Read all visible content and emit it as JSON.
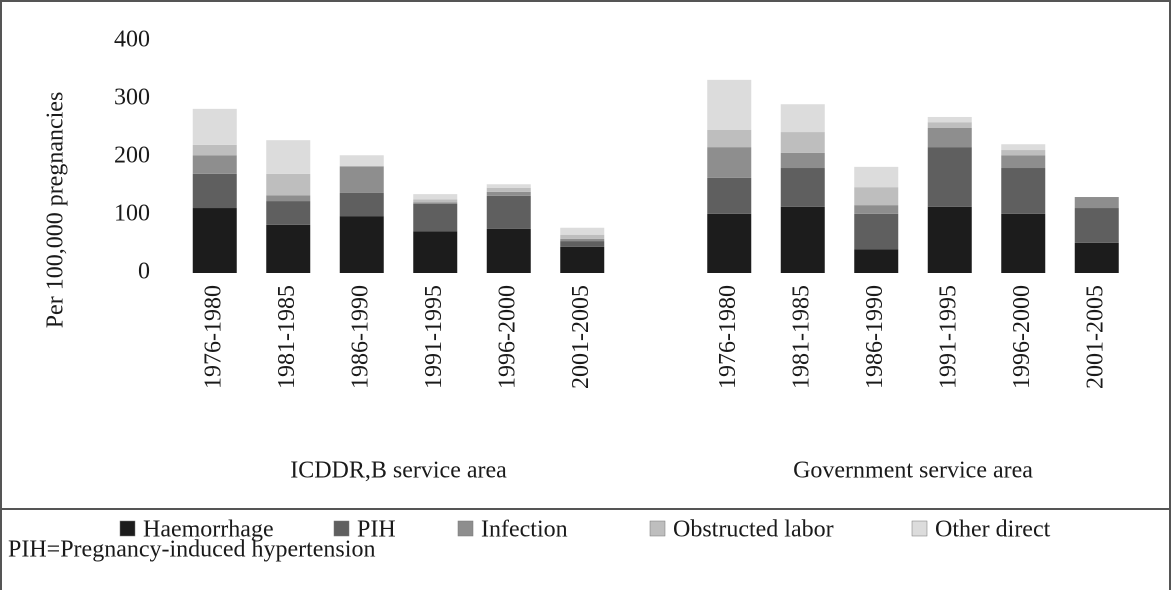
{
  "chart_data": {
    "type": "stacked-bar",
    "ylabel": "Per 100,000 pregnancies",
    "ylim": [
      0,
      400
    ],
    "yticks": [
      0,
      100,
      200,
      300,
      400
    ],
    "groups": [
      "ICDDR,B service area",
      "Government service area"
    ],
    "categories": [
      "1976-1980",
      "1981-1985",
      "1986-1990",
      "1991-1995",
      "1996-2000",
      "2001-2005",
      "1976-1980",
      "1981-1985",
      "1986-1990",
      "1991-1995",
      "1996-2000",
      "2001-2005"
    ],
    "series": [
      {
        "name": "Haemorrhage",
        "color": "#1c1c1c",
        "values": [
          112,
          83,
          98,
          72,
          76,
          45,
          102,
          114,
          41,
          114,
          102,
          52
        ]
      },
      {
        "name": "PIH",
        "color": "#5f5f5f",
        "values": [
          59,
          41,
          40,
          47,
          57,
          10,
          62,
          67,
          61,
          103,
          79,
          60
        ]
      },
      {
        "name": "Infection",
        "color": "#8e8e8e",
        "values": [
          32,
          10,
          46,
          3,
          7,
          4,
          53,
          26,
          15,
          33,
          22,
          19
        ]
      },
      {
        "name": "Obstructed labor",
        "color": "#bebebe",
        "values": [
          18,
          37,
          0,
          5,
          7,
          7,
          30,
          36,
          31,
          10,
          9,
          0
        ]
      },
      {
        "name": "Other direct",
        "color": "#dcdcdc",
        "values": [
          62,
          58,
          19,
          9,
          6,
          12,
          86,
          48,
          35,
          9,
          10,
          0
        ]
      }
    ]
  },
  "footnote": "PIH=Pregnancy-induced hypertension"
}
